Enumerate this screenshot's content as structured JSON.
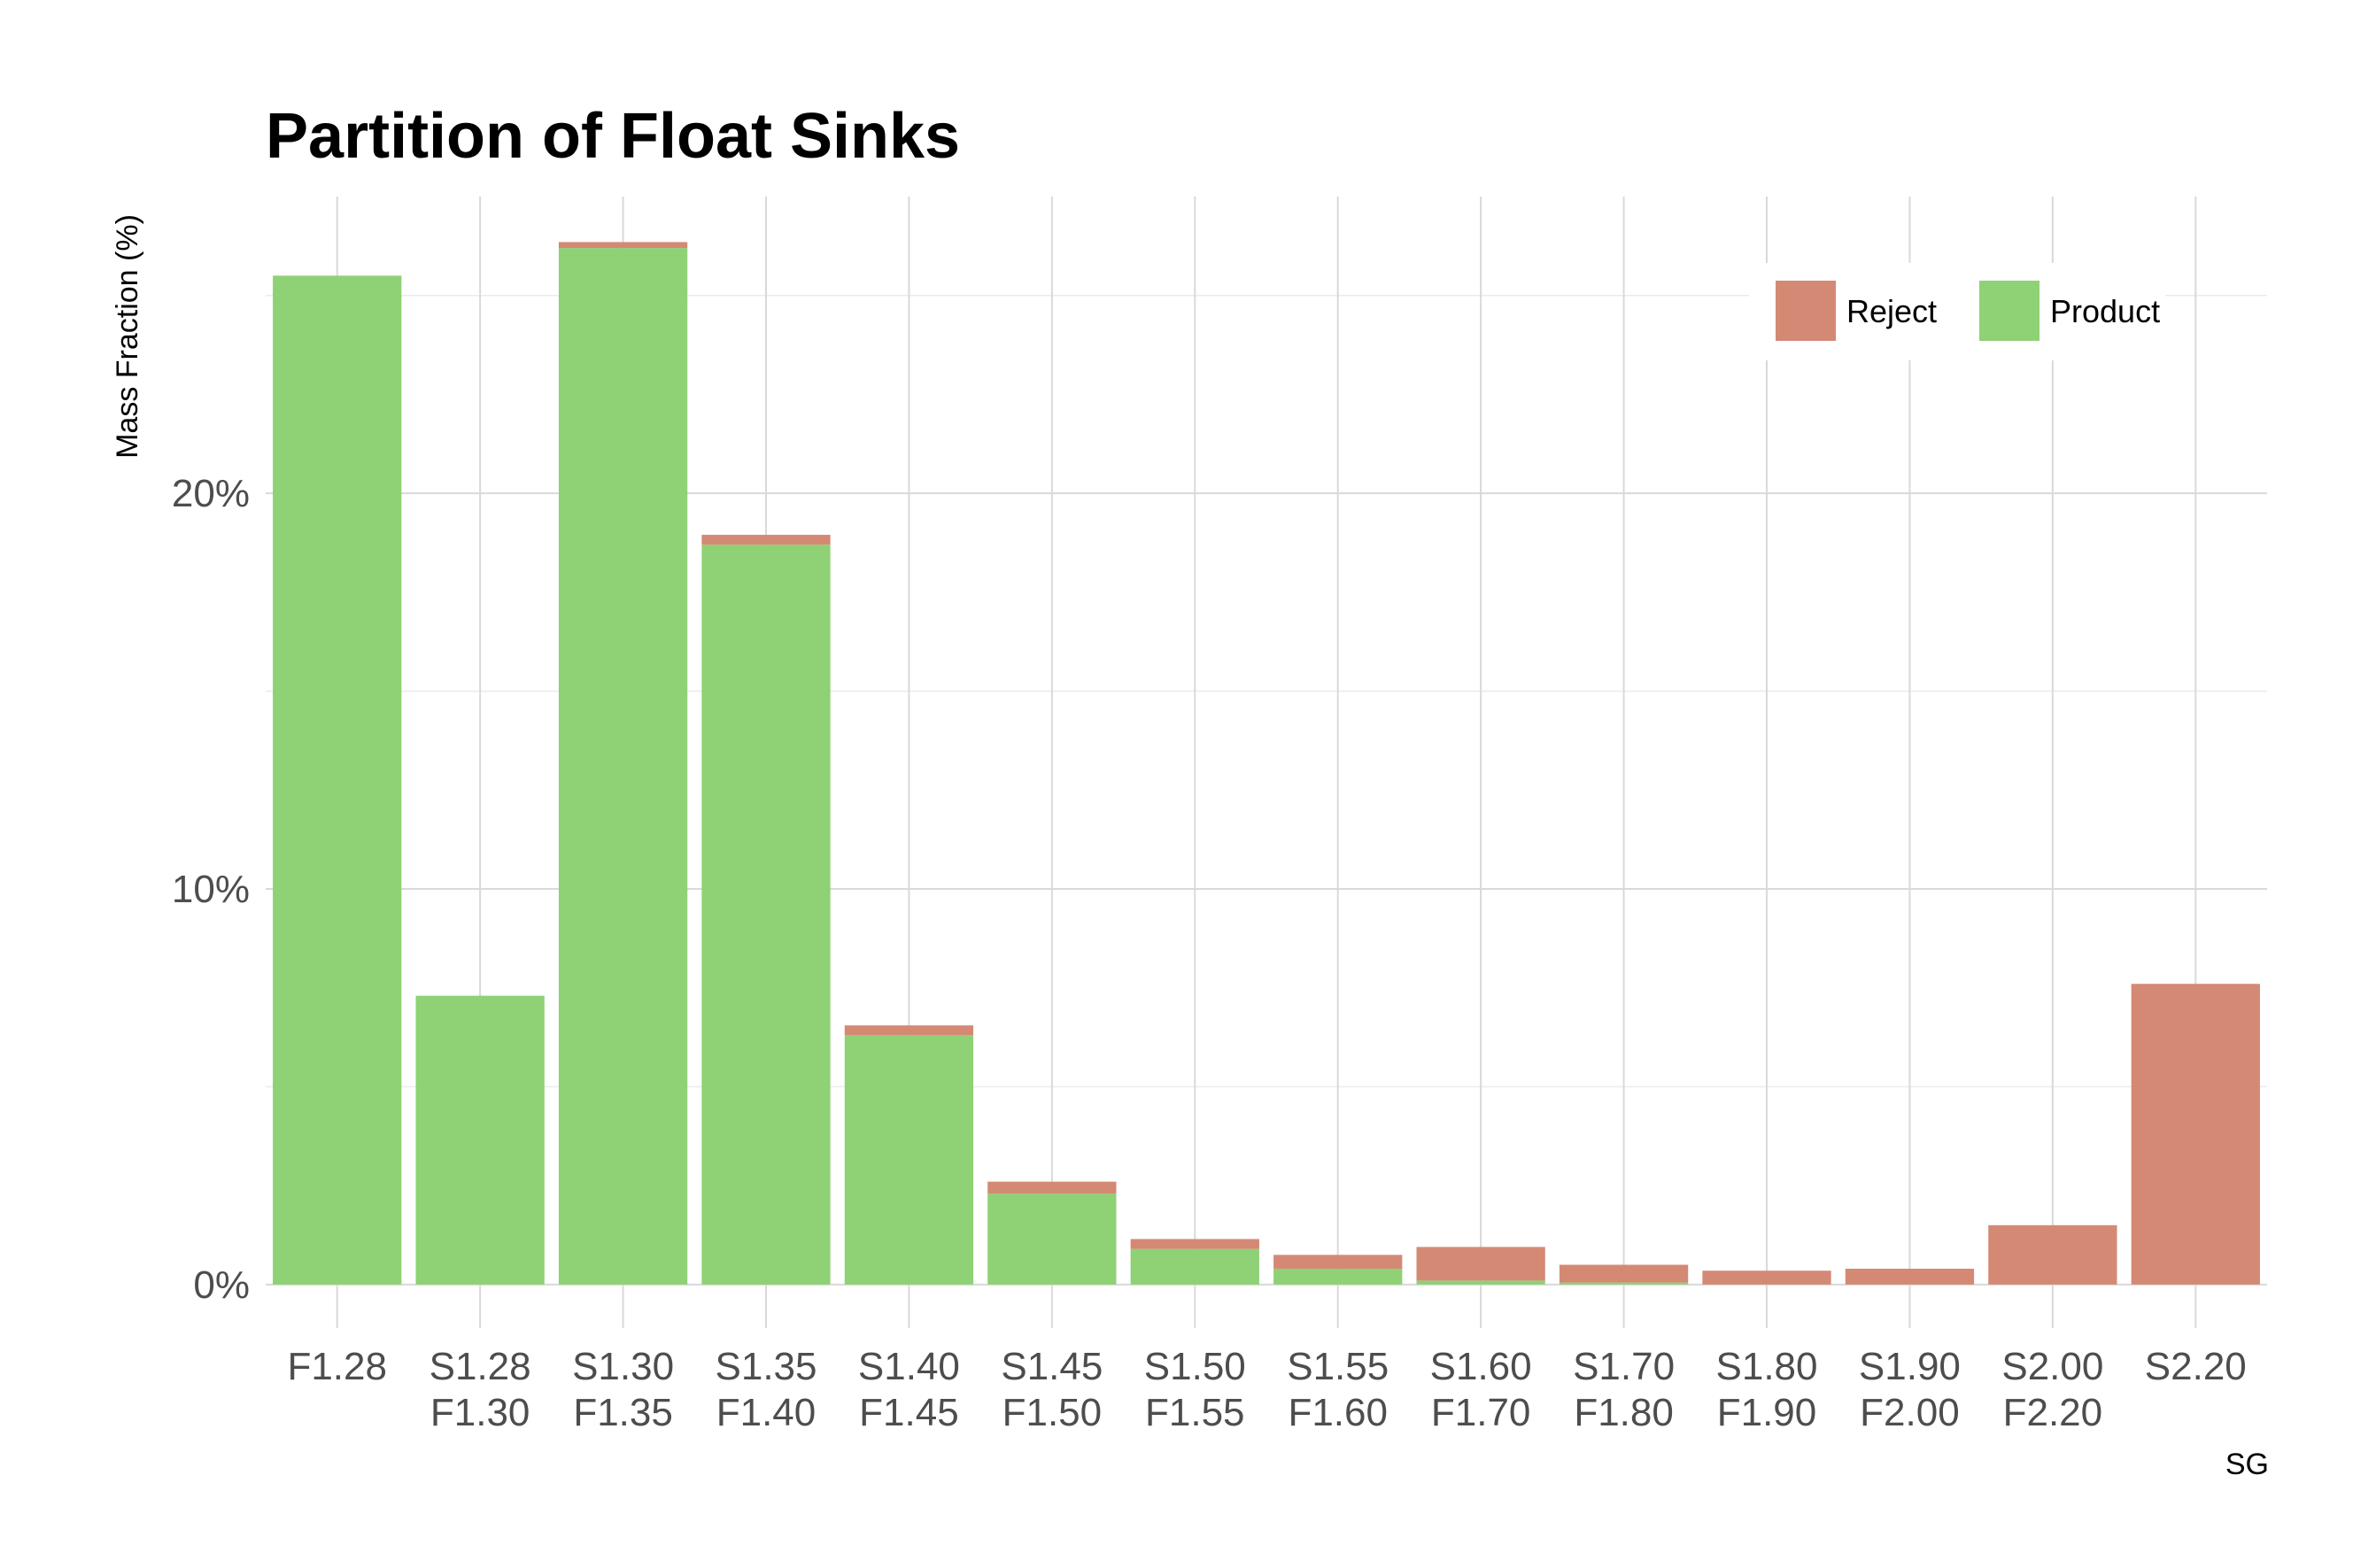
{
  "chart_data": {
    "type": "bar",
    "stacked": true,
    "title": "Partition of Float Sinks",
    "xlabel": "SG",
    "ylabel": "Mass Fraction (%)",
    "ylim": [
      -1.1,
      27.5
    ],
    "yticks": [
      0,
      10,
      20
    ],
    "ytick_labels": [
      "0%",
      "10%",
      "20%"
    ],
    "grid": true,
    "legend_position": "top-right",
    "categories": [
      [
        "F1.28"
      ],
      [
        "S1.28",
        "F1.30"
      ],
      [
        "S1.30",
        "F1.35"
      ],
      [
        "S1.35",
        "F1.40"
      ],
      [
        "S1.40",
        "F1.45"
      ],
      [
        "S1.45",
        "F1.50"
      ],
      [
        "S1.50",
        "F1.55"
      ],
      [
        "S1.55",
        "F1.60"
      ],
      [
        "S1.60",
        "F1.70"
      ],
      [
        "S1.70",
        "F1.80"
      ],
      [
        "S1.80",
        "F1.90"
      ],
      [
        "S1.90",
        "F2.00"
      ],
      [
        "S2.00",
        "F2.20"
      ],
      [
        "S2.20"
      ]
    ],
    "series": [
      {
        "name": "Product",
        "color": "#8fd175",
        "values": [
          25.5,
          7.3,
          26.2,
          18.7,
          6.3,
          2.3,
          0.9,
          0.4,
          0.1,
          0.05,
          0,
          0,
          0,
          0
        ]
      },
      {
        "name": "Reject",
        "color": "#d48975",
        "values": [
          0,
          0,
          0.15,
          0.25,
          0.25,
          0.3,
          0.25,
          0.35,
          0.85,
          0.45,
          0.35,
          0.4,
          1.5,
          7.6
        ]
      }
    ],
    "legend": [
      {
        "name": "Reject",
        "color": "#d48975"
      },
      {
        "name": "Product",
        "color": "#8fd175"
      }
    ]
  }
}
